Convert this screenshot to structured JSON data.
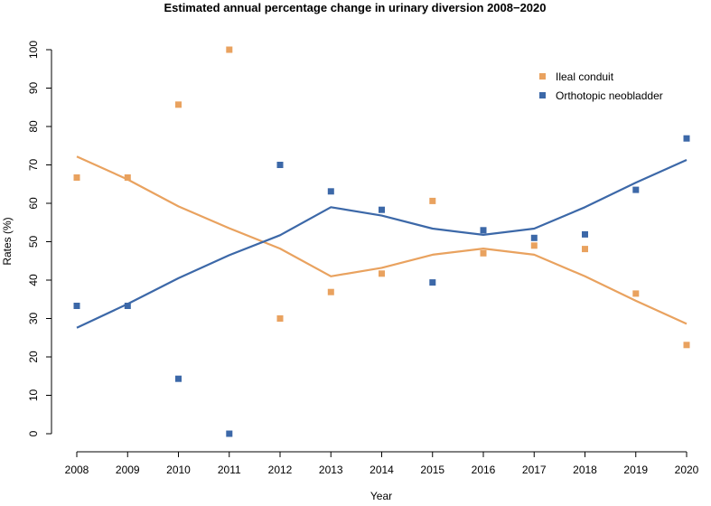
{
  "chart_data": {
    "type": "scatter",
    "title": "Estimated annual percentage change in urinary diversion 2008−2020",
    "xlabel": "Year",
    "ylabel": "Rates (%)",
    "x": [
      2008,
      2009,
      2010,
      2011,
      2012,
      2013,
      2014,
      2015,
      2016,
      2017,
      2018,
      2019,
      2020
    ],
    "xticks": [
      "2008",
      "2009",
      "2010",
      "2011",
      "2012",
      "2013",
      "2014",
      "2015",
      "2016",
      "2017",
      "2018",
      "2019",
      "2020"
    ],
    "yticks": [
      "0",
      "10",
      "20",
      "30",
      "40",
      "50",
      "60",
      "70",
      "80",
      "90",
      "100"
    ],
    "xlim": [
      2008,
      2020
    ],
    "ylim": [
      0,
      100
    ],
    "grid": false,
    "legend_position": "top-right",
    "series": [
      {
        "name": "Ileal conduit",
        "color": "#e9a25f",
        "points": [
          66.7,
          66.7,
          85.7,
          100,
          30,
          36.9,
          41.7,
          60.6,
          47,
          49,
          48.1,
          36.5,
          23.1
        ],
        "trend": [
          72.2,
          66.2,
          59.2,
          53.5,
          48.2,
          41,
          43.2,
          46.6,
          48.2,
          46.6,
          41,
          34.6,
          28.6
        ]
      },
      {
        "name": "Orthotopic neobladder",
        "color": "#3c68a8",
        "points": [
          33.3,
          33.3,
          14.3,
          0,
          70,
          63.1,
          58.3,
          39.4,
          53,
          51,
          51.9,
          63.5,
          76.9
        ],
        "trend": [
          27.6,
          33.8,
          40.5,
          46.5,
          51.7,
          59,
          56.8,
          53.4,
          51.8,
          53.4,
          59,
          65.4,
          71.3
        ]
      }
    ]
  }
}
